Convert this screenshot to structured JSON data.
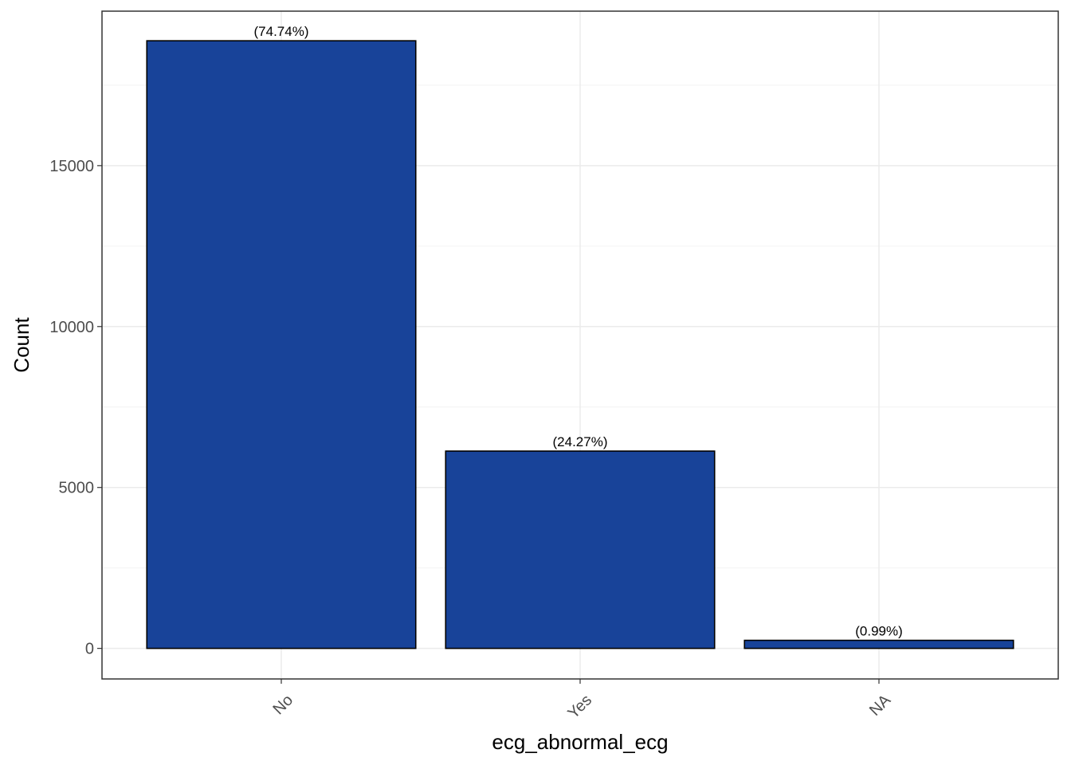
{
  "chart_data": {
    "type": "bar",
    "title": "",
    "xlabel": "ecg_abnormal_ecg",
    "ylabel": "Count",
    "categories": [
      "No",
      "Yes",
      "NA"
    ],
    "values": [
      18880,
      6130,
      250
    ],
    "data_labels": [
      "(74.74%)",
      "(24.27%)",
      "(0.99%)"
    ],
    "ylim": [
      -950,
      19800
    ],
    "y_ticks": [
      0,
      5000,
      10000,
      15000
    ],
    "y_tick_labels": [
      "0",
      "5000",
      "10000",
      "15000"
    ],
    "grid": true,
    "legend": "none",
    "colors": {
      "bar_fill": "#184399",
      "bar_stroke": "#000000",
      "grid_major": "#ebebeb",
      "grid_minor": "#f5f5f5",
      "panel_border": "#333333",
      "tick_text": "#4d4d4d",
      "axis_title": "#000000"
    }
  }
}
